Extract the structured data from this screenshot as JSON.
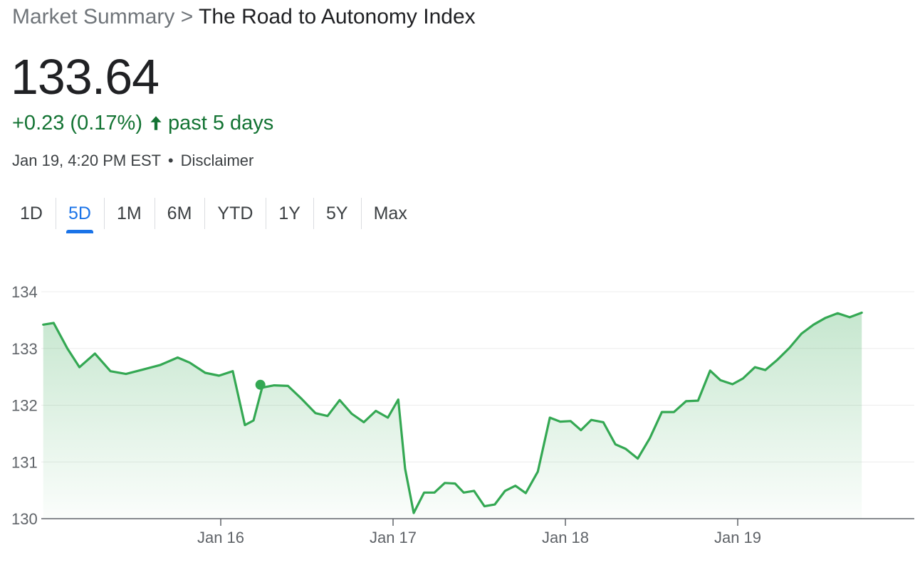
{
  "breadcrumb": {
    "parent": "Market Summary",
    "separator": ">",
    "current": "The Road to Autonomy Index"
  },
  "quote": {
    "price": "133.64",
    "change": "+0.23 (0.17%)",
    "period": "past 5 days",
    "arrow_icon": "arrow-up-icon",
    "timestamp": "Jan 19, 4:20 PM EST",
    "separator": "•",
    "disclaimer": "Disclaimer"
  },
  "colors": {
    "positive": "#137333",
    "line": "#34a853",
    "accent": "#1a73e8"
  },
  "ranges": {
    "active": "5D",
    "items": [
      "1D",
      "5D",
      "1M",
      "6M",
      "YTD",
      "1Y",
      "5Y",
      "Max"
    ]
  },
  "chart_data": {
    "type": "area",
    "title": "",
    "xlabel": "",
    "ylabel": "",
    "ylim": [
      130,
      134
    ],
    "yticks": [
      130,
      131,
      132,
      133,
      134
    ],
    "grid": true,
    "xticks": [
      {
        "label": "Jan 16",
        "x": 1
      },
      {
        "label": "Jan 17",
        "x": 2
      },
      {
        "label": "Jan 18",
        "x": 3
      },
      {
        "label": "Jan 19",
        "x": 4
      }
    ],
    "highlight_point": {
      "x": 1.23,
      "y": 132.36
    },
    "series": [
      {
        "values": [
          [
            -0.03,
            133.42
          ],
          [
            0.03,
            133.45
          ],
          [
            0.11,
            133.0
          ],
          [
            0.18,
            132.67
          ],
          [
            0.27,
            132.91
          ],
          [
            0.36,
            132.6
          ],
          [
            0.45,
            132.55
          ],
          [
            0.55,
            132.63
          ],
          [
            0.65,
            132.71
          ],
          [
            0.75,
            132.84
          ],
          [
            0.82,
            132.75
          ],
          [
            0.91,
            132.57
          ],
          [
            0.99,
            132.52
          ],
          [
            1.07,
            132.6
          ],
          [
            1.14,
            131.65
          ],
          [
            1.19,
            131.73
          ],
          [
            1.24,
            132.31
          ],
          [
            1.31,
            132.35
          ],
          [
            1.39,
            132.34
          ],
          [
            1.47,
            132.11
          ],
          [
            1.55,
            131.86
          ],
          [
            1.62,
            131.81
          ],
          [
            1.69,
            132.09
          ],
          [
            1.76,
            131.85
          ],
          [
            1.83,
            131.7
          ],
          [
            1.9,
            131.9
          ],
          [
            1.97,
            131.78
          ],
          [
            2.03,
            132.1
          ],
          [
            2.07,
            130.88
          ],
          [
            2.12,
            130.1
          ],
          [
            2.18,
            130.46
          ],
          [
            2.24,
            130.46
          ],
          [
            2.3,
            130.63
          ],
          [
            2.36,
            130.62
          ],
          [
            2.41,
            130.46
          ],
          [
            2.47,
            130.49
          ],
          [
            2.53,
            130.22
          ],
          [
            2.59,
            130.25
          ],
          [
            2.65,
            130.49
          ],
          [
            2.71,
            130.58
          ],
          [
            2.77,
            130.45
          ],
          [
            2.84,
            130.83
          ],
          [
            2.91,
            131.78
          ],
          [
            2.97,
            131.71
          ],
          [
            3.03,
            131.72
          ],
          [
            3.09,
            131.56
          ],
          [
            3.15,
            131.74
          ],
          [
            3.22,
            131.7
          ],
          [
            3.29,
            131.31
          ],
          [
            3.35,
            131.23
          ],
          [
            3.42,
            131.06
          ],
          [
            3.49,
            131.42
          ],
          [
            3.56,
            131.88
          ],
          [
            3.63,
            131.88
          ],
          [
            3.7,
            132.07
          ],
          [
            3.77,
            132.08
          ],
          [
            3.84,
            132.61
          ],
          [
            3.9,
            132.44
          ],
          [
            3.97,
            132.37
          ],
          [
            4.03,
            132.47
          ],
          [
            4.1,
            132.67
          ],
          [
            4.16,
            132.62
          ],
          [
            4.23,
            132.8
          ],
          [
            4.3,
            133.01
          ],
          [
            4.37,
            133.26
          ],
          [
            4.44,
            133.42
          ],
          [
            4.51,
            133.54
          ],
          [
            4.58,
            133.62
          ],
          [
            4.65,
            133.55
          ],
          [
            4.72,
            133.63
          ]
        ]
      }
    ]
  }
}
